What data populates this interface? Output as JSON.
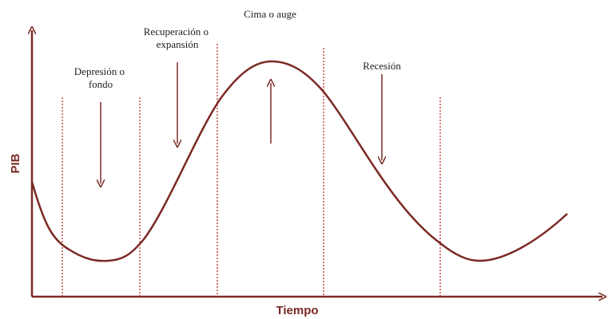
{
  "axes": {
    "y_label": "PIB",
    "x_label": "Tiempo"
  },
  "phases": [
    {
      "lines": [
        "Depresión o",
        "fondo"
      ]
    },
    {
      "lines": [
        "Recuperación o",
        "expansión"
      ]
    },
    {
      "lines": [
        "Cima o auge"
      ]
    },
    {
      "lines": [
        "Recesión"
      ]
    }
  ]
}
